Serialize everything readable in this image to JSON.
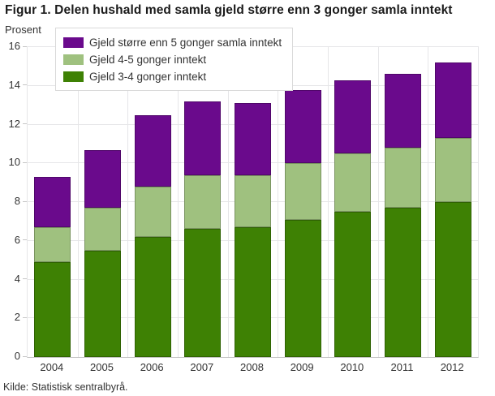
{
  "figure": {
    "title": "Figur 1. Delen hushald med samla gjeld større enn 3 gonger samla inntekt",
    "source": "Kilde: Statistisk sentralbyrå."
  },
  "chart_data": {
    "type": "bar",
    "stacked": true,
    "title": "Figur 1. Delen hushald med samla gjeld større enn 3 gonger samla inntekt",
    "ylabel": "Prosent",
    "xlabel": "",
    "ylim": [
      0,
      16
    ],
    "ytick_step": 2,
    "grid": true,
    "legend_position": "top-left",
    "categories": [
      "2004",
      "2005",
      "2006",
      "2007",
      "2008",
      "2009",
      "2010",
      "2011",
      "2012"
    ],
    "series": [
      {
        "name": "Gjeld større enn 5 gonger samla inntekt",
        "color": "#6a0a8c",
        "values": [
          2.6,
          3.0,
          3.7,
          3.8,
          3.7,
          3.8,
          3.8,
          3.8,
          3.9
        ]
      },
      {
        "name": "Gjeld 4-5 gonger inntekt",
        "color": "#9fc17f",
        "values": [
          1.8,
          2.2,
          2.6,
          2.8,
          2.7,
          2.9,
          3.0,
          3.1,
          3.3
        ]
      },
      {
        "name": "Gjeld 3-4 gonger inntekt",
        "color": "#3e8104",
        "values": [
          4.9,
          5.5,
          6.2,
          6.6,
          6.7,
          7.1,
          7.5,
          7.7,
          8.0
        ]
      }
    ],
    "stack_totals": [
      9.3,
      10.7,
      12.5,
      13.2,
      13.1,
      13.8,
      14.3,
      14.6,
      15.2
    ]
  },
  "colors": {
    "background": "#ffffff",
    "grid": "#e6e6e8",
    "axis": "#c6c6c6",
    "text": "#333333",
    "title": "#1a1a1a",
    "legend_border": "#d9d9d9"
  }
}
